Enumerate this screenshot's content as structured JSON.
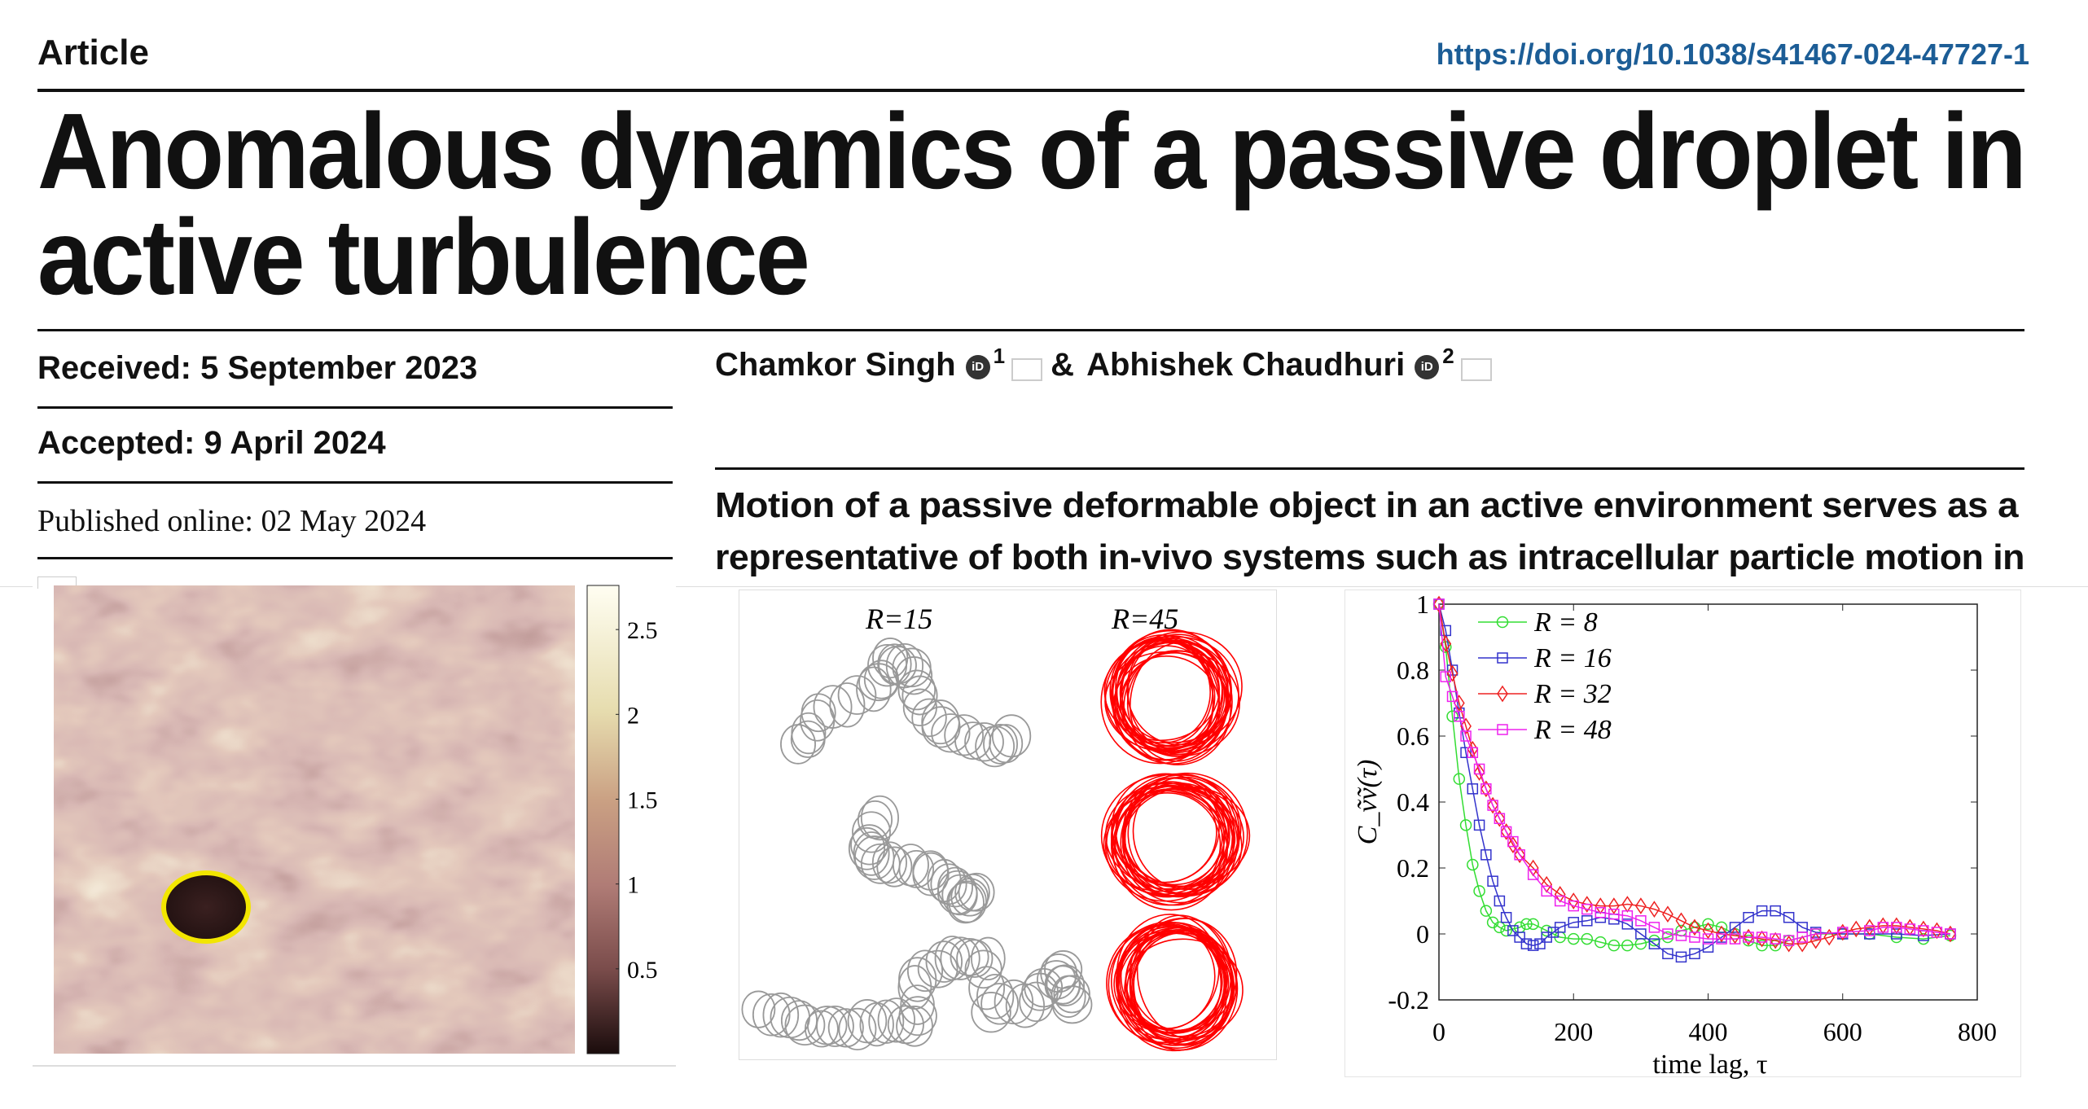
{
  "header": {
    "article_label": "Article",
    "doi": "https://doi.org/10.1038/s41467-024-47727-1"
  },
  "title": {
    "line1": "Anomalous dynamics of a passive droplet in",
    "line2": "active turbulence"
  },
  "dates": {
    "received": "Received: 5 September 2023",
    "accepted": "Accepted: 9 April 2024",
    "published": "Published online: 02 May 2024"
  },
  "authors": [
    {
      "name": "Chamkor Singh",
      "affiliation": "1",
      "orcid_icon": "orcid-icon",
      "email_icon": "envelope-icon"
    },
    {
      "prefix": "& ",
      "name": "Abhishek Chaudhuri",
      "affiliation": "2",
      "orcid_icon": "orcid-icon",
      "email_icon": "envelope-icon"
    }
  ],
  "abstract": {
    "line1": "Motion of a passive deformable object in an active environment serves as a",
    "line2": "representative of both in-vivo systems such as intracellular particle motion in"
  },
  "figure_heatmap": {
    "colorbar_ticks": [
      "2.5",
      "2",
      "1.5",
      "1",
      "0.5"
    ],
    "colorbar_values": [
      2.5,
      2,
      1.5,
      1,
      0.5
    ],
    "colorbar_max": 2.76,
    "droplet_outline_color": "#f2e600",
    "colormap": [
      "#1a0c0c",
      "#7a4c4b",
      "#b07c76",
      "#caa083",
      "#e6dcae",
      "#fffef2"
    ]
  },
  "figure_trajectories": {
    "label_left": "R=15",
    "label_right": "R=45",
    "left_color": "#999999",
    "right_color": "#ff0000"
  },
  "chart_data": {
    "type": "line",
    "xlabel": "time lag, τ",
    "ylabel": "C_ṽṽ(τ)",
    "xlim": [
      0,
      800
    ],
    "ylim": [
      -0.2,
      1
    ],
    "xticks": [
      "0",
      "200",
      "400",
      "600",
      "800"
    ],
    "xtick_values": [
      0,
      200,
      400,
      600,
      800
    ],
    "yticks": [
      "-0.2",
      "0",
      "0.2",
      "0.4",
      "0.6",
      "0.8",
      "1"
    ],
    "ytick_values": [
      -0.2,
      0,
      0.2,
      0.4,
      0.6,
      0.8,
      1
    ],
    "grid": false,
    "legend_position": "top-left",
    "series": [
      {
        "name": "R = 8",
        "color": "#33dd33",
        "marker": "circle",
        "x": [
          0,
          10,
          20,
          30,
          40,
          50,
          60,
          70,
          80,
          90,
          100,
          120,
          130,
          140,
          160,
          180,
          200,
          220,
          240,
          260,
          280,
          300,
          320,
          340,
          360,
          380,
          400,
          420,
          440,
          460,
          480,
          500,
          520,
          560,
          600,
          640,
          680,
          720,
          760
        ],
        "y": [
          1,
          0.87,
          0.66,
          0.47,
          0.33,
          0.21,
          0.13,
          0.07,
          0.035,
          0.02,
          0.01,
          0.02,
          0.03,
          0.03,
          0.01,
          -0.01,
          -0.015,
          -0.015,
          -0.025,
          -0.035,
          -0.035,
          -0.03,
          -0.02,
          -0.01,
          0.01,
          0.02,
          0.03,
          0.02,
          0.0,
          -0.02,
          -0.035,
          -0.035,
          -0.02,
          0.0,
          0.0,
          0.0,
          -0.01,
          -0.015,
          -0.005
        ]
      },
      {
        "name": "R = 16",
        "color": "#3333cc",
        "marker": "square",
        "x": [
          0,
          10,
          20,
          30,
          40,
          50,
          60,
          70,
          80,
          90,
          100,
          110,
          120,
          130,
          140,
          150,
          160,
          170,
          180,
          200,
          220,
          240,
          260,
          280,
          300,
          320,
          340,
          360,
          380,
          400,
          420,
          440,
          460,
          480,
          500,
          520,
          540,
          560,
          600,
          640,
          680,
          720,
          760
        ],
        "y": [
          1,
          0.92,
          0.8,
          0.67,
          0.55,
          0.44,
          0.33,
          0.24,
          0.16,
          0.1,
          0.05,
          0.01,
          -0.01,
          -0.03,
          -0.035,
          -0.03,
          -0.01,
          0.005,
          0.02,
          0.035,
          0.04,
          0.05,
          0.045,
          0.03,
          0.0,
          -0.03,
          -0.06,
          -0.07,
          -0.06,
          -0.04,
          -0.01,
          0.02,
          0.05,
          0.07,
          0.07,
          0.05,
          0.02,
          0.005,
          0.0,
          0.0,
          0.0,
          -0.005,
          0.0
        ]
      },
      {
        "name": "R = 32",
        "color": "#ee2222",
        "marker": "diamond",
        "x": [
          0,
          10,
          20,
          30,
          40,
          50,
          60,
          70,
          80,
          90,
          100,
          110,
          120,
          140,
          160,
          180,
          200,
          220,
          240,
          260,
          280,
          300,
          320,
          340,
          360,
          380,
          400,
          420,
          440,
          460,
          480,
          500,
          520,
          540,
          560,
          580,
          600,
          620,
          640,
          660,
          680,
          700,
          720,
          740,
          760
        ],
        "y": [
          1,
          0.88,
          0.79,
          0.7,
          0.63,
          0.56,
          0.49,
          0.44,
          0.39,
          0.35,
          0.31,
          0.27,
          0.24,
          0.2,
          0.15,
          0.12,
          0.1,
          0.09,
          0.085,
          0.085,
          0.09,
          0.085,
          0.075,
          0.06,
          0.04,
          0.02,
          0.01,
          0.0,
          -0.005,
          -0.01,
          -0.015,
          -0.02,
          -0.03,
          -0.03,
          -0.02,
          -0.01,
          0.005,
          0.015,
          0.02,
          0.025,
          0.025,
          0.02,
          0.015,
          0.01,
          0.0
        ]
      },
      {
        "name": "R = 48",
        "color": "#ee22ee",
        "marker": "square",
        "x": [
          0,
          10,
          20,
          30,
          40,
          50,
          60,
          70,
          80,
          90,
          100,
          110,
          120,
          140,
          160,
          180,
          200,
          220,
          240,
          260,
          280,
          300,
          320,
          340,
          360,
          380,
          400,
          420,
          440,
          460,
          480,
          500,
          520,
          540,
          560,
          600,
          640,
          660,
          680,
          700,
          720,
          740,
          760
        ],
        "y": [
          1,
          0.78,
          0.72,
          0.66,
          0.6,
          0.55,
          0.5,
          0.44,
          0.39,
          0.35,
          0.31,
          0.28,
          0.24,
          0.18,
          0.13,
          0.1,
          0.085,
          0.075,
          0.065,
          0.06,
          0.055,
          0.04,
          0.02,
          0.0,
          -0.005,
          -0.01,
          -0.015,
          -0.015,
          -0.015,
          -0.01,
          -0.01,
          -0.015,
          -0.02,
          -0.01,
          0.0,
          0.005,
          0.01,
          0.02,
          0.02,
          0.015,
          0.01,
          0.005,
          0.0
        ]
      }
    ]
  }
}
